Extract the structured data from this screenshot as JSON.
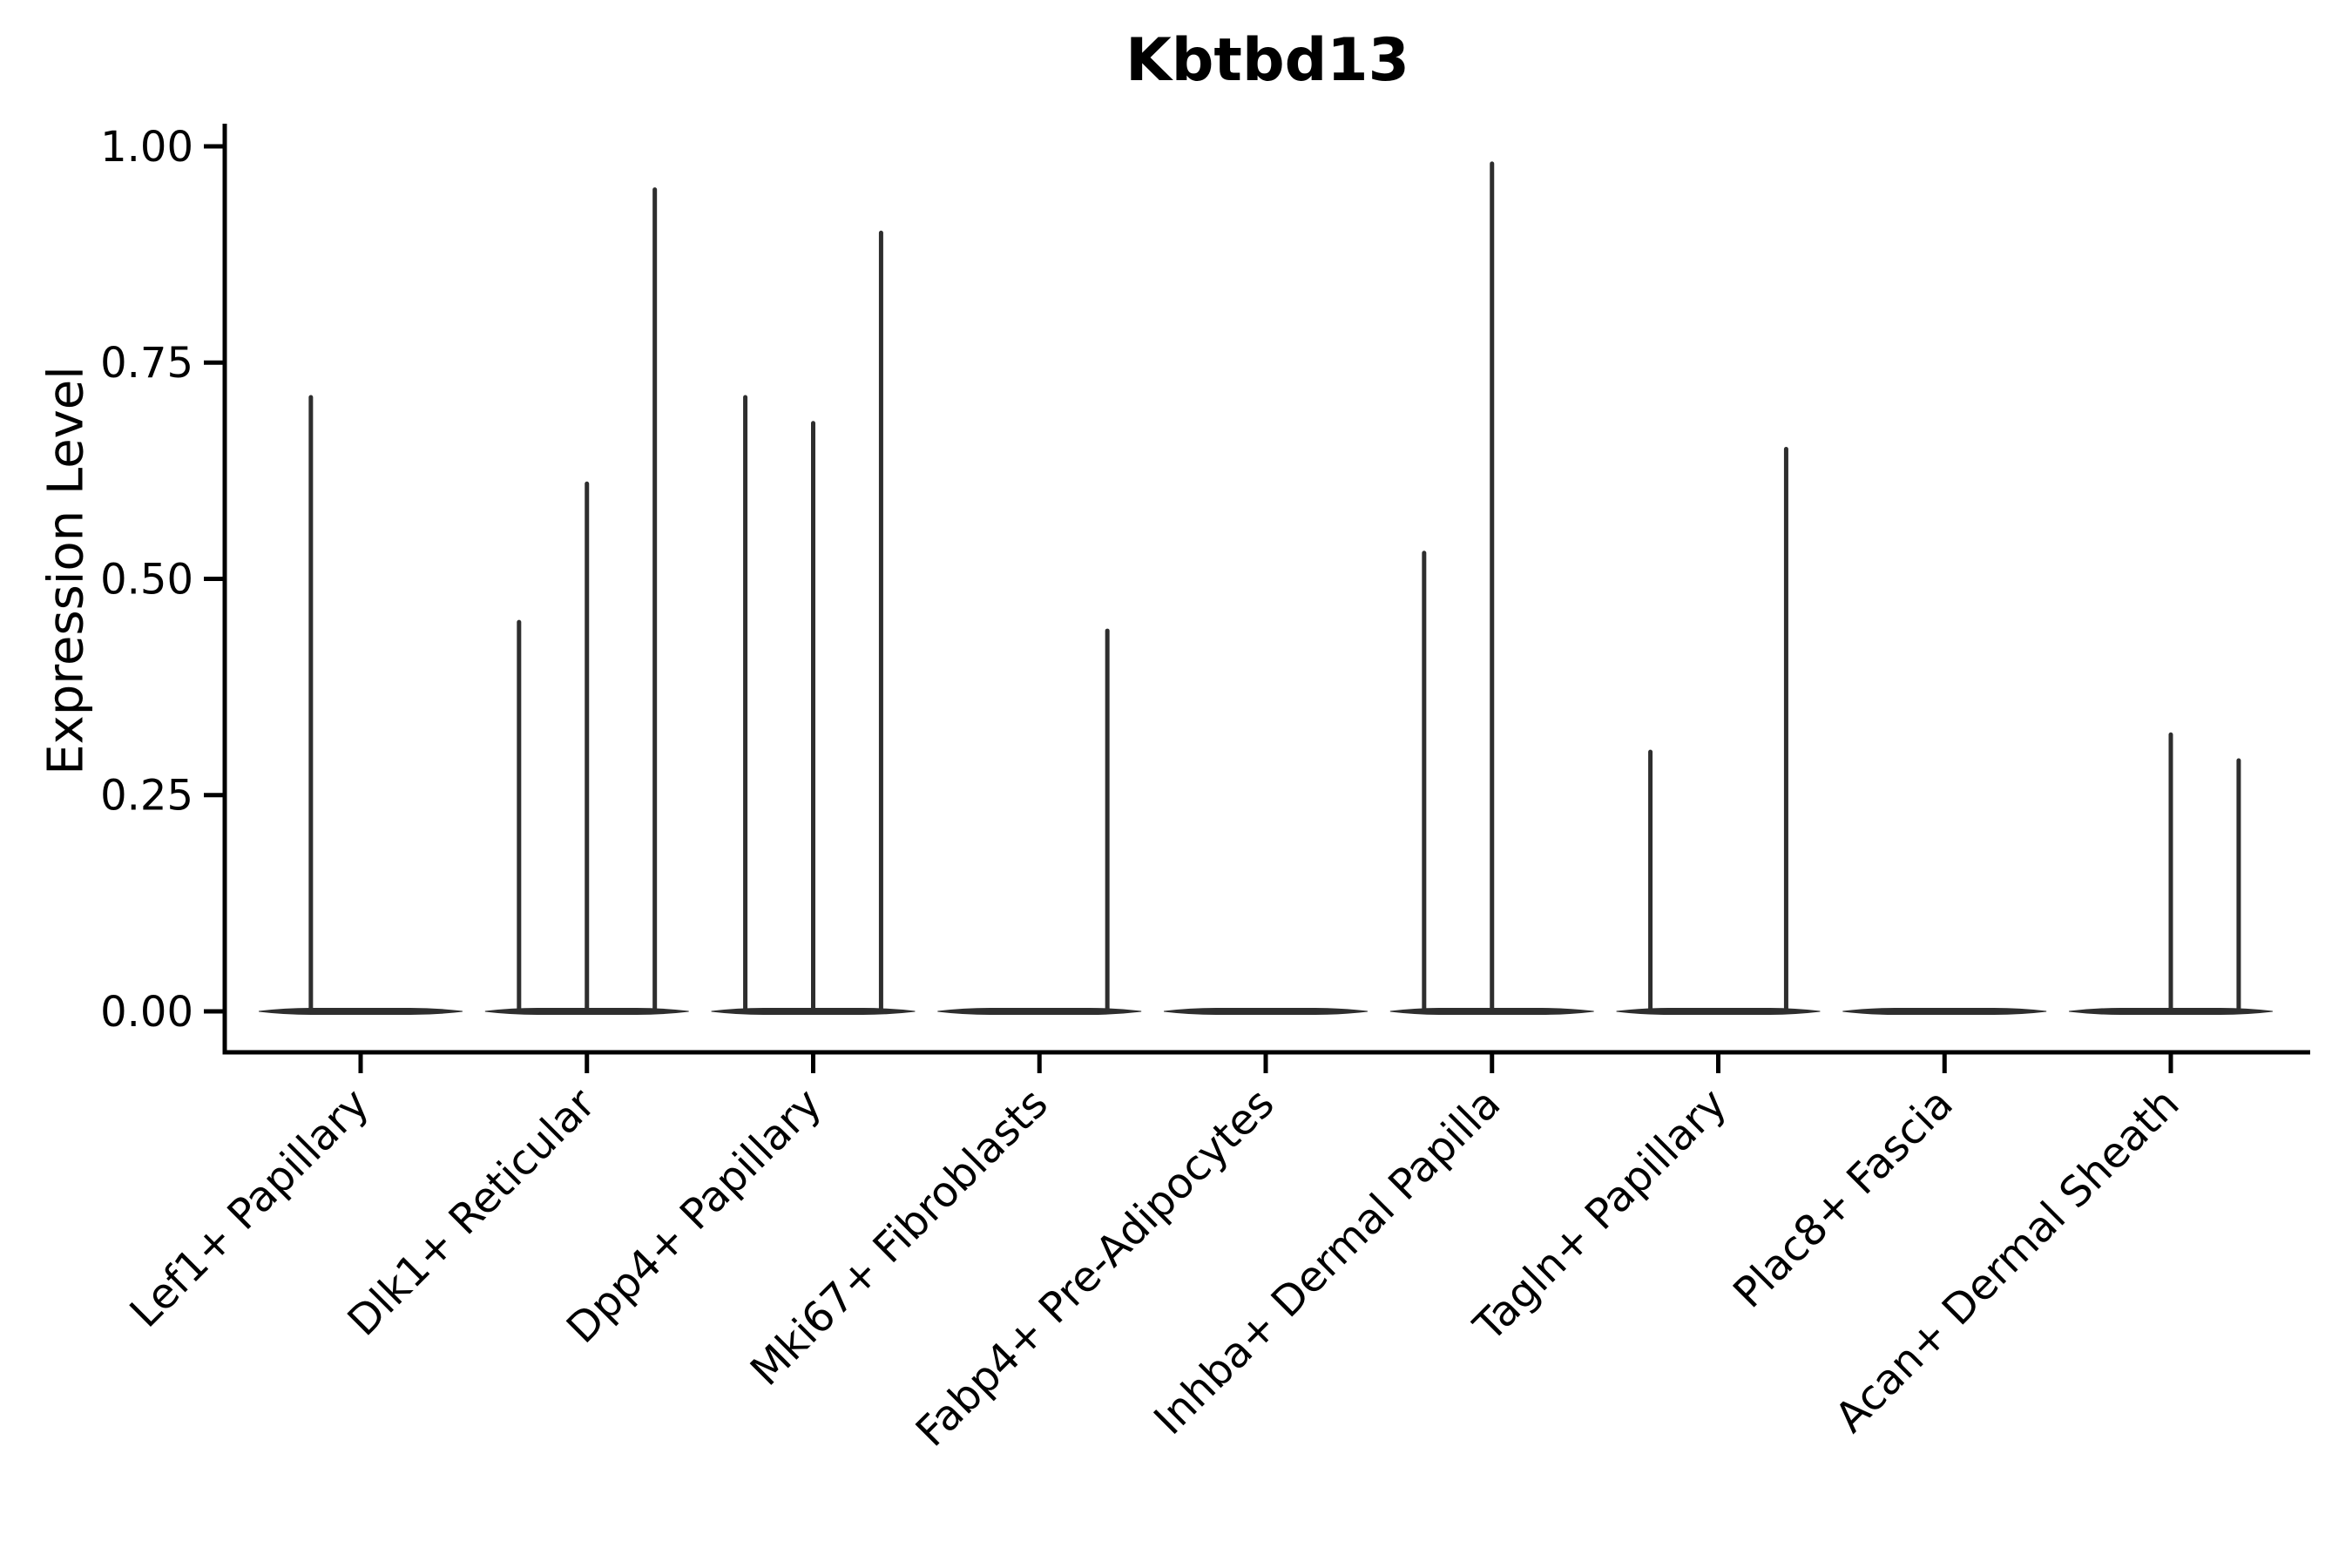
{
  "page": {
    "background": "#ffffff"
  },
  "chart_data": {
    "type": "violin",
    "title": "Kbtbd13",
    "xlabel": "",
    "ylabel": "Expression Level",
    "ylim": [
      0.0,
      1.0
    ],
    "yticks": [
      0.0,
      0.25,
      0.5,
      0.75,
      1.0
    ],
    "ytick_labels": [
      "0.00",
      "0.25",
      "0.50",
      "0.75",
      "1.00"
    ],
    "grid": false,
    "legend": null,
    "x_tick_rotation_deg": 45,
    "categories": [
      "Lef1+ Papillary",
      "Dlk1+ Reticular",
      "Dpp4+ Papillary",
      "Mki67+ Fibroblasts",
      "Fabp4+ Pre-Adipocytes",
      "Inhba+ Dermal Papilla",
      "Tagln+ Papillary",
      "Plac8+ Fascia",
      "Acan+ Dermal Sheath"
    ],
    "violin_half_width": 0.45,
    "series": [
      {
        "category": "Lef1+ Papillary",
        "spikes": [
          {
            "offset": -0.22,
            "value": 0.71
          }
        ]
      },
      {
        "category": "Dlk1+ Reticular",
        "spikes": [
          {
            "offset": -0.3,
            "value": 0.45
          },
          {
            "offset": 0.0,
            "value": 0.61
          },
          {
            "offset": 0.3,
            "value": 0.95
          }
        ]
      },
      {
        "category": "Dpp4+ Papillary",
        "spikes": [
          {
            "offset": -0.3,
            "value": 0.71
          },
          {
            "offset": 0.0,
            "value": 0.68
          },
          {
            "offset": 0.3,
            "value": 0.9
          }
        ]
      },
      {
        "category": "Mki67+ Fibroblasts",
        "spikes": [
          {
            "offset": 0.3,
            "value": 0.44
          }
        ]
      },
      {
        "category": "Fabp4+ Pre-Adipocytes",
        "spikes": []
      },
      {
        "category": "Inhba+ Dermal Papilla",
        "spikes": [
          {
            "offset": -0.3,
            "value": 0.53
          },
          {
            "offset": 0.0,
            "value": 0.98
          }
        ]
      },
      {
        "category": "Tagln+ Papillary",
        "spikes": [
          {
            "offset": -0.3,
            "value": 0.3
          },
          {
            "offset": 0.3,
            "value": 0.65
          }
        ]
      },
      {
        "category": "Plac8+ Fascia",
        "spikes": []
      },
      {
        "category": "Acan+ Dermal Sheath",
        "spikes": [
          {
            "offset": 0.0,
            "value": 0.32
          },
          {
            "offset": 0.3,
            "value": 0.29
          }
        ]
      }
    ],
    "colors": {
      "violin": "#2e2e2e",
      "axis": "#000000",
      "text": "#000000",
      "background": "#ffffff"
    }
  }
}
